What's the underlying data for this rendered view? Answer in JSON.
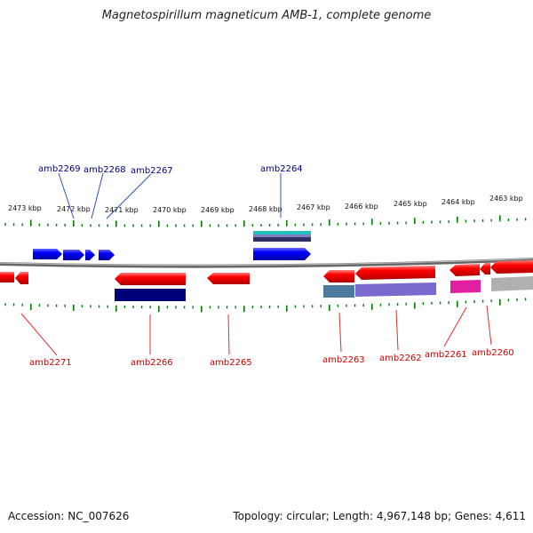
{
  "title": "Magnetospirillum magneticum AMB-1, complete genome",
  "footer": {
    "accession": "Accession: NC_007626",
    "summary": "Topology: circular; Length: 4,967,148 bp; Genes: 4,611"
  },
  "ruler": {
    "ticks": [
      "2473 kbp",
      "2472 kbp",
      "2471 kbp",
      "2470 kbp",
      "2469 kbp",
      "2468 kbp",
      "2467 kbp",
      "2466 kbp",
      "2465 kbp",
      "2464 kbp",
      "2463 kbp"
    ]
  },
  "colors": {
    "forward": "#0000ff",
    "reverse": "#ff0000",
    "forward_label": "#000080",
    "reverse_label": "#cc0000",
    "tick": "#008000",
    "backbone": "#888888"
  },
  "top_labels": [
    "amb2269",
    "amb2268",
    "amb2267",
    "amb2264"
  ],
  "bottom_labels": [
    "amb2271",
    "amb2266",
    "amb2265",
    "amb2263",
    "amb2262",
    "amb2261",
    "amb2260"
  ]
}
